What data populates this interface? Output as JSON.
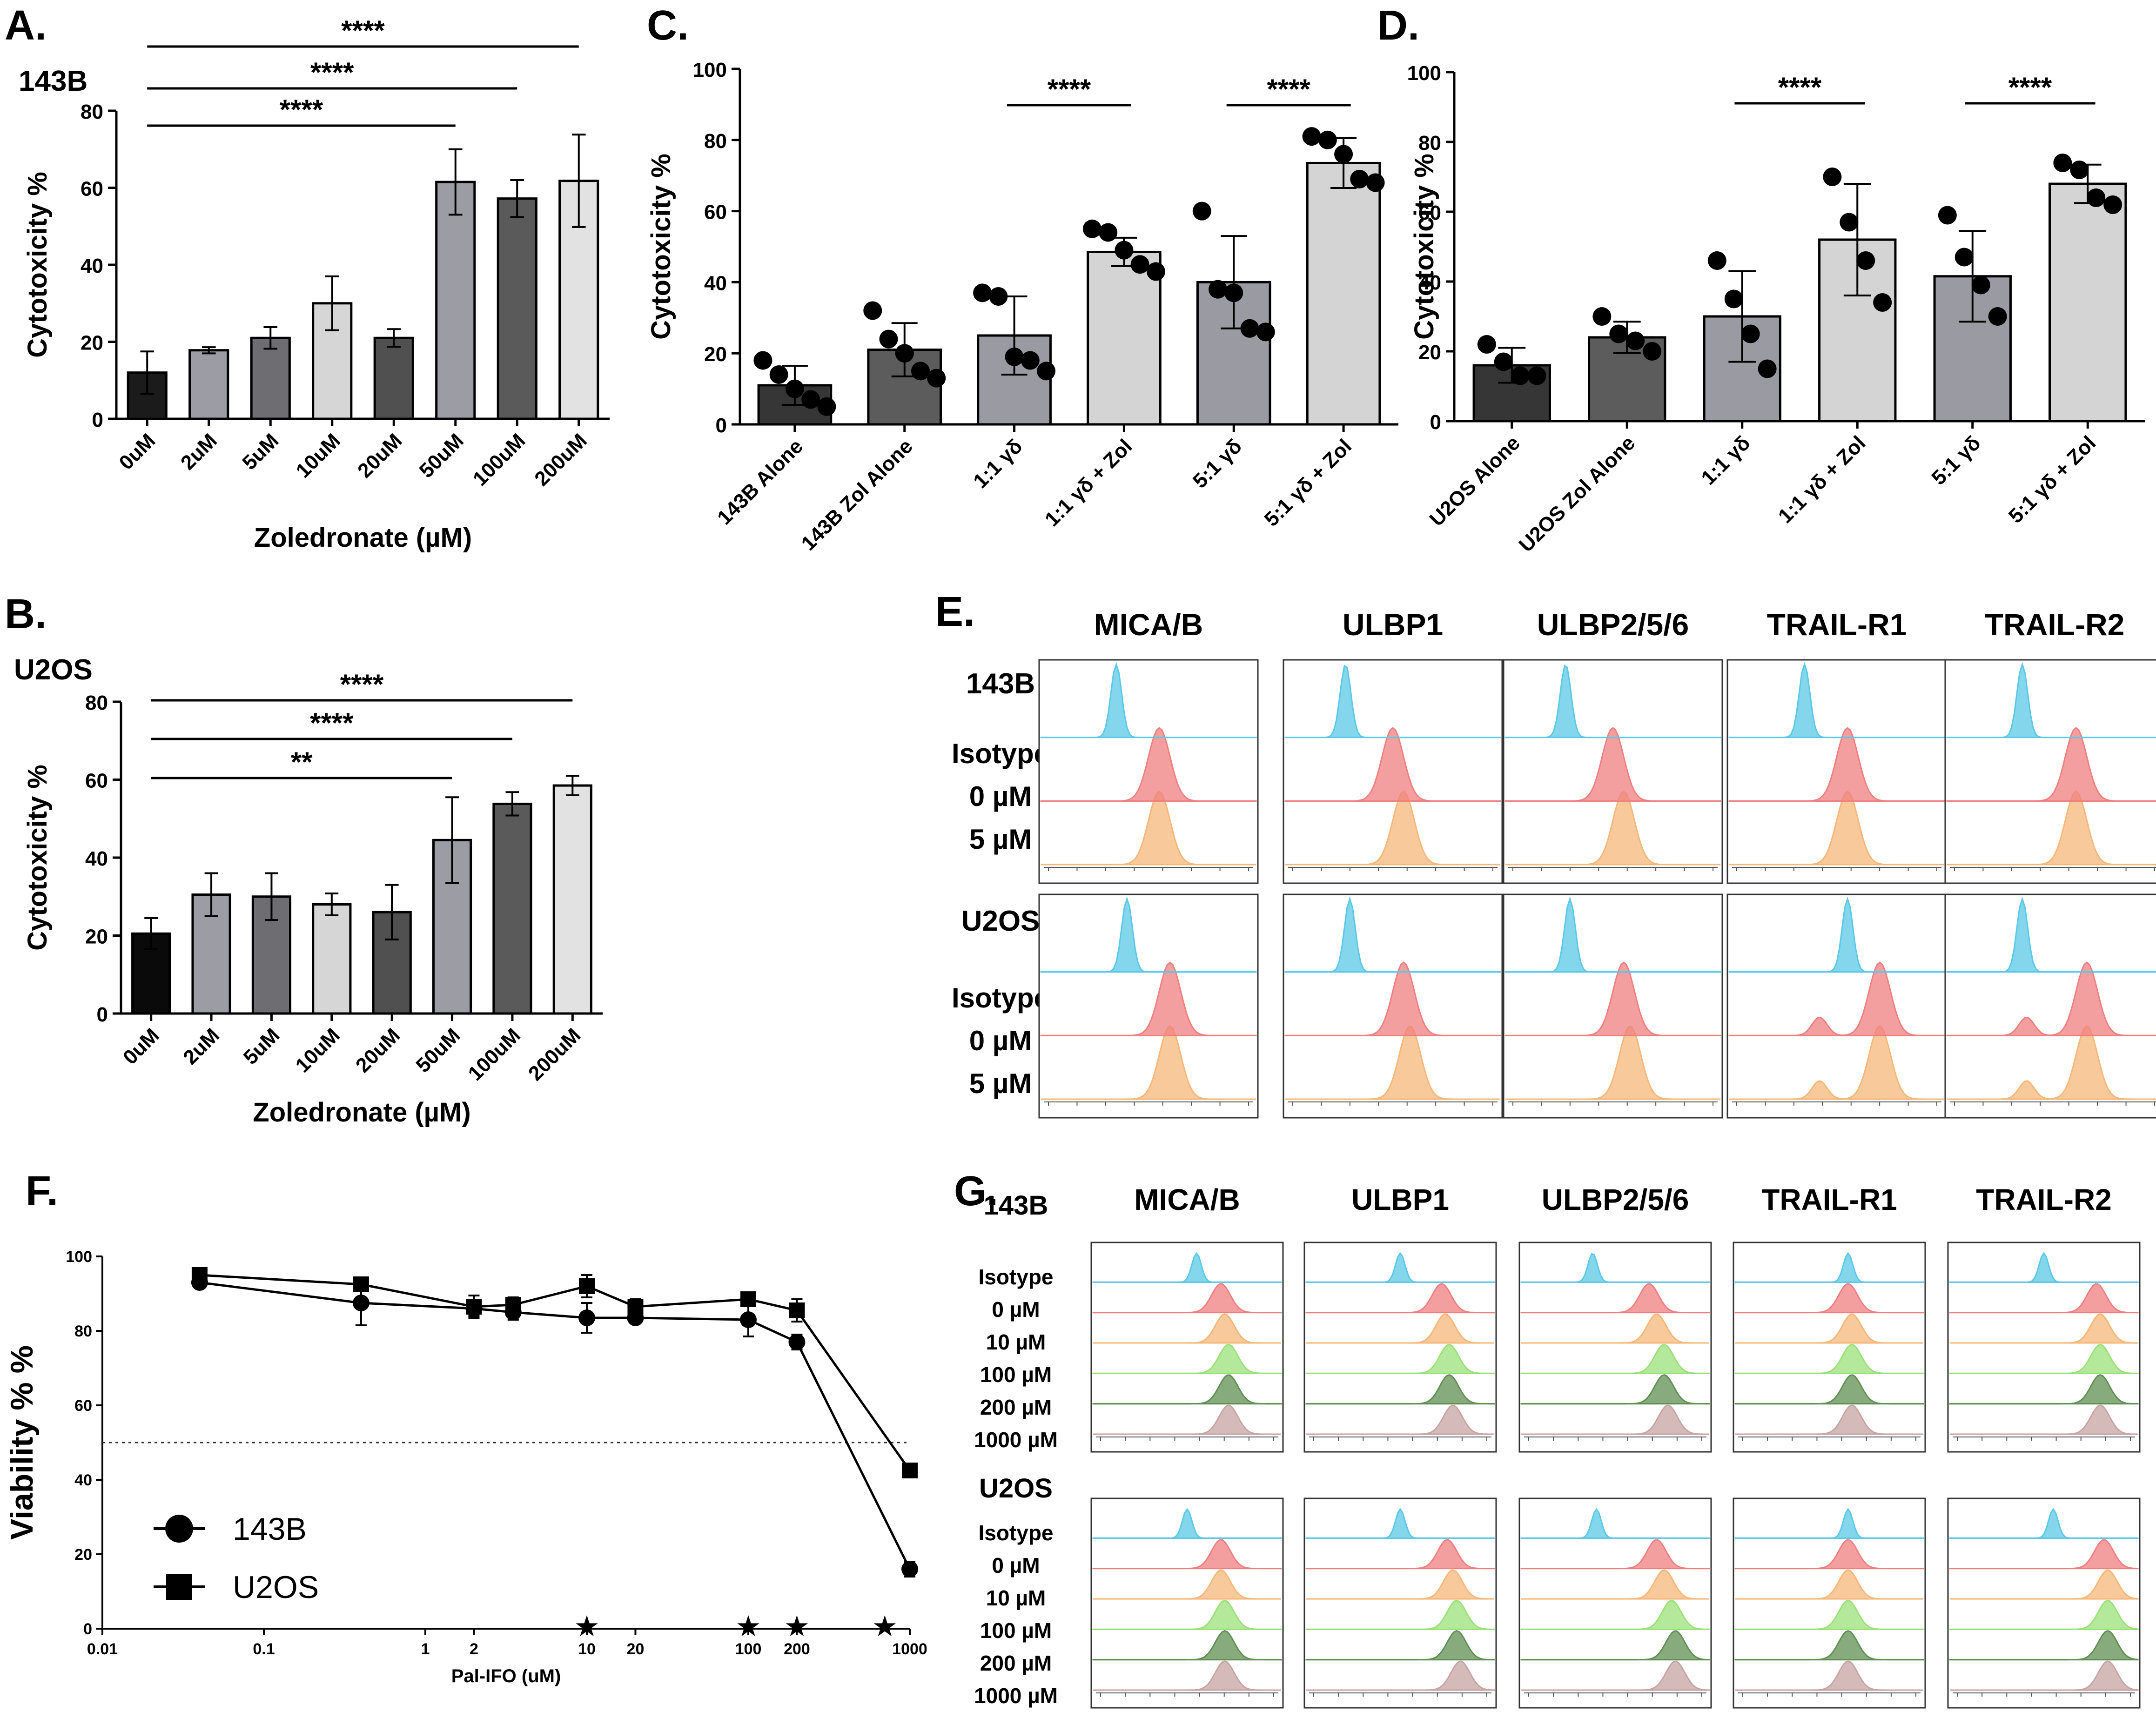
{
  "panelA": {
    "letter": "A.",
    "cell": "143B",
    "chart_data": {
      "type": "bar",
      "title": "143B",
      "categories": [
        "0uM",
        "2uM",
        "5uM",
        "10uM",
        "20uM",
        "50uM",
        "100uM",
        "200uM"
      ],
      "values": [
        12,
        17.8,
        21,
        30,
        21,
        61.5,
        57.2,
        61.8
      ],
      "errors": [
        5.5,
        0.8,
        2.8,
        7,
        2.3,
        8.5,
        4.8,
        12
      ],
      "colors": [
        "#1b1b1b",
        "#9c9ca4",
        "#6e6e72",
        "#d6d6d6",
        "#505050",
        "#9c9ca4",
        "#5a5a5a",
        "#e2e2e2"
      ],
      "xlabel": "Zoledronate (µM)",
      "ylabel": "Cytotoxicity %",
      "ylim": [
        0,
        80
      ],
      "yticks": [
        "0",
        "20",
        "40",
        "60",
        "80"
      ],
      "brackets": [
        {
          "from": "0uM",
          "to": "200uM",
          "label": "****"
        },
        {
          "from": "0uM",
          "to": "100uM",
          "label": "****"
        },
        {
          "from": "0uM",
          "to": "50uM",
          "label": "****"
        }
      ]
    }
  },
  "panelB": {
    "letter": "B.",
    "cell": "U2OS",
    "chart_data": {
      "type": "bar",
      "title": "U2OS",
      "categories": [
        "0uM",
        "2uM",
        "5uM",
        "10uM",
        "20uM",
        "50uM",
        "100uM",
        "200uM"
      ],
      "values": [
        20.5,
        30.5,
        30,
        28,
        26,
        44.5,
        53.8,
        58.5
      ],
      "errors": [
        4,
        5.5,
        6,
        2.8,
        7,
        11,
        3,
        2.5
      ],
      "colors": [
        "#0a0a0a",
        "#9c9ca4",
        "#6e6e72",
        "#d6d6d6",
        "#505050",
        "#9c9ca4",
        "#5a5a5a",
        "#e2e2e2"
      ],
      "xlabel": "Zoledronate (µM)",
      "ylabel": "Cytotoxicity %",
      "ylim": [
        0,
        80
      ],
      "yticks": [
        "0",
        "20",
        "40",
        "60",
        "80"
      ],
      "brackets": [
        {
          "from": "0uM",
          "to": "200uM",
          "label": "****"
        },
        {
          "from": "0uM",
          "to": "100uM",
          "label": "****"
        },
        {
          "from": "0uM",
          "to": "50uM",
          "label": "**"
        }
      ]
    }
  },
  "panelC": {
    "letter": "C.",
    "chart_data": {
      "type": "bar",
      "title": "",
      "categories": [
        "143B Alone",
        "143B Zol Alone",
        "1:1 γδ",
        "1:1 γδ + Zol",
        "5:1 γδ",
        "5:1 γδ + Zol"
      ],
      "values": [
        11,
        21,
        25,
        48.5,
        40,
        73.5
      ],
      "errors": [
        5.5,
        7.5,
        11,
        4,
        13,
        7
      ],
      "points": [
        [
          18,
          14,
          10,
          7,
          5
        ],
        [
          32,
          24,
          20,
          15,
          13
        ],
        [
          37,
          36,
          19,
          18,
          15
        ],
        [
          55,
          54,
          49,
          45,
          43
        ],
        [
          60,
          38,
          37,
          27,
          26
        ],
        [
          81,
          80,
          76,
          69,
          68
        ]
      ],
      "colors": [
        "#363636",
        "#5c5c5c",
        "#9a9aa2",
        "#d4d4d4",
        "#9a9aa2",
        "#d4d4d4"
      ],
      "xlabel": "",
      "ylabel": "Cytotoxicity %",
      "ylim": [
        0,
        100
      ],
      "yticks": [
        "0",
        "20",
        "40",
        "60",
        "80",
        "100"
      ],
      "brackets": [
        {
          "from": "1:1 γδ",
          "to": "1:1 γδ + Zol",
          "label": "****"
        },
        {
          "from": "5:1 γδ",
          "to": "5:1 γδ + Zol",
          "label": "****"
        }
      ]
    }
  },
  "panelD": {
    "letter": "D.",
    "chart_data": {
      "type": "bar",
      "title": "",
      "categories": [
        "U2OS Alone",
        "U2OS Zol Alone",
        "1:1 γδ",
        "1:1 γδ + Zol",
        "5:1 γδ",
        "5:1 γδ + Zol"
      ],
      "values": [
        16,
        24,
        30,
        52,
        41.5,
        68
      ],
      "errors": [
        5,
        4.5,
        13,
        16,
        13,
        5.5
      ],
      "points": [
        [
          22,
          17,
          13,
          13
        ],
        [
          30,
          25,
          23,
          20
        ],
        [
          46,
          35,
          25,
          15
        ],
        [
          70,
          57,
          46,
          34
        ],
        [
          59,
          47,
          39,
          30
        ],
        [
          74,
          72,
          64,
          62
        ]
      ],
      "colors": [
        "#363636",
        "#5c5c5c",
        "#9a9aa2",
        "#d4d4d4",
        "#9a9aa2",
        "#d4d4d4"
      ],
      "xlabel": "",
      "ylabel": "Cytotoxicity %",
      "ylim": [
        0,
        100
      ],
      "yticks": [
        "0",
        "20",
        "40",
        "60",
        "80",
        "100"
      ],
      "brackets": [
        {
          "from": "1:1 γδ",
          "to": "1:1 γδ + Zol",
          "label": "****"
        },
        {
          "from": "5:1 γδ",
          "to": "5:1 γδ + Zol",
          "label": "****"
        }
      ]
    }
  },
  "panelE": {
    "letter": "E.",
    "markers": [
      "MICA/B",
      "ULBP1",
      "ULBP2/5/6",
      "TRAIL-R1",
      "TRAIL-R2"
    ],
    "groups": [
      {
        "cell": "143B",
        "conditions": [
          "Isotype",
          "0 µM",
          "5 µM"
        ]
      },
      {
        "cell": "U2OS",
        "conditions": [
          "Isotype",
          "0 µM",
          "5 µM"
        ]
      }
    ],
    "colors": {
      "Isotype": "#5bc8e6",
      "0 µM": "#ef7f7f",
      "5 µM": "#f5b77a"
    },
    "chart_data": {
      "type": "histogram",
      "xaxis": "log fluorescence (-10^4 to 10^5)",
      "peaks_143B": {
        "MICA/B": [
          0.35,
          0.55,
          0.55
        ],
        "ULBP1": [
          0.28,
          0.5,
          0.55
        ],
        "ULBP2/5/6": [
          0.28,
          0.5,
          0.55
        ],
        "TRAIL-R1": [
          0.35,
          0.55,
          0.55
        ],
        "TRAIL-R2": [
          0.35,
          0.6,
          0.6
        ]
      },
      "peaks_U2OS": {
        "MICA/B": [
          0.4,
          0.6,
          0.6
        ],
        "ULBP1": [
          0.3,
          0.55,
          0.58
        ],
        "ULBP2/5/6": [
          0.3,
          0.55,
          0.58
        ],
        "TRAIL-R1": [
          0.55,
          0.7,
          0.7
        ],
        "TRAIL-R2": [
          0.35,
          0.65,
          0.65
        ]
      }
    }
  },
  "panelF": {
    "letter": "F.",
    "chart_data": {
      "type": "line",
      "xscale": "log",
      "xlabel": "Pal-IFO (uM)",
      "ylabel": "Viability % %",
      "xlim": [
        0.01,
        1000
      ],
      "ylim": [
        0,
        100
      ],
      "xticks": [
        "0.01",
        "0.1",
        "1",
        "2",
        "10",
        "20",
        "100",
        "200",
        "1000"
      ],
      "yticks": [
        "0",
        "20",
        "40",
        "60",
        "80",
        "100"
      ],
      "reference_line": 50,
      "series": [
        {
          "name": "143B",
          "marker": "circle",
          "x": [
            0.04,
            0.4,
            2,
            3.5,
            10,
            20,
            100,
            200,
            1000
          ],
          "y": [
            93,
            87.5,
            86,
            85,
            83.5,
            83.5,
            83,
            77,
            16
          ],
          "err": [
            1.5,
            6,
            2,
            2,
            4,
            1.5,
            4.5,
            2,
            2
          ]
        },
        {
          "name": "U2OS",
          "marker": "square",
          "x": [
            0.04,
            0.4,
            2,
            3.5,
            10,
            20,
            100,
            200,
            1000
          ],
          "y": [
            95,
            92.5,
            86.5,
            87,
            92,
            86.5,
            88.5,
            85.5,
            42.5
          ],
          "err": [
            1,
            1,
            3,
            2,
            3,
            2,
            1.5,
            3,
            1
          ]
        }
      ],
      "significance": {
        "symbol": "★",
        "at_x": [
          10,
          100,
          200,
          700
        ]
      }
    }
  },
  "panelG": {
    "letter": "G.",
    "markers": [
      "MICA/B",
      "ULBP1",
      "ULBP2/5/6",
      "TRAIL-R1",
      "TRAIL-R2"
    ],
    "groups": [
      {
        "cell": "143B",
        "conditions": [
          "Isotype",
          "0 µM",
          "10 µM",
          "100 µM",
          "200 µM",
          "1000 µM"
        ]
      },
      {
        "cell": "U2OS",
        "conditions": [
          "Isotype",
          "0 µM",
          "10 µM",
          "100 µM",
          "200 µM",
          "1000 µM"
        ]
      }
    ],
    "colors": {
      "Isotype": "#5bc8e6",
      "0 µM": "#ef7f7f",
      "10 µM": "#f5b77a",
      "100 µM": "#9be07a",
      "200 µM": "#5f8f52",
      "1000 µM": "#c7a3a3"
    },
    "chart_data": {
      "type": "histogram",
      "xaxis": "log fluorescence",
      "peaks_143B": {
        "MICA/B": [
          0.55,
          0.68,
          0.7,
          0.72,
          0.72,
          0.72
        ],
        "ULBP1": [
          0.5,
          0.72,
          0.74,
          0.76,
          0.76,
          0.78
        ],
        "ULBP2/5/6": [
          0.38,
          0.68,
          0.72,
          0.76,
          0.76,
          0.78
        ],
        "TRAIL-R1": [
          0.6,
          0.6,
          0.62,
          0.62,
          0.62,
          0.62
        ],
        "TRAIL-R2": [
          0.5,
          0.78,
          0.8,
          0.8,
          0.8,
          0.8
        ]
      },
      "peaks_U2OS": {
        "MICA/B": [
          0.5,
          0.68,
          0.68,
          0.7,
          0.7,
          0.7
        ],
        "ULBP1": [
          0.5,
          0.75,
          0.78,
          0.8,
          0.8,
          0.82
        ],
        "ULBP2/5/6": [
          0.4,
          0.72,
          0.76,
          0.8,
          0.82,
          0.82
        ],
        "TRAIL-R1": [
          0.6,
          0.6,
          0.6,
          0.6,
          0.6,
          0.6
        ],
        "TRAIL-R2": [
          0.55,
          0.82,
          0.84,
          0.84,
          0.84,
          0.84
        ]
      }
    }
  }
}
